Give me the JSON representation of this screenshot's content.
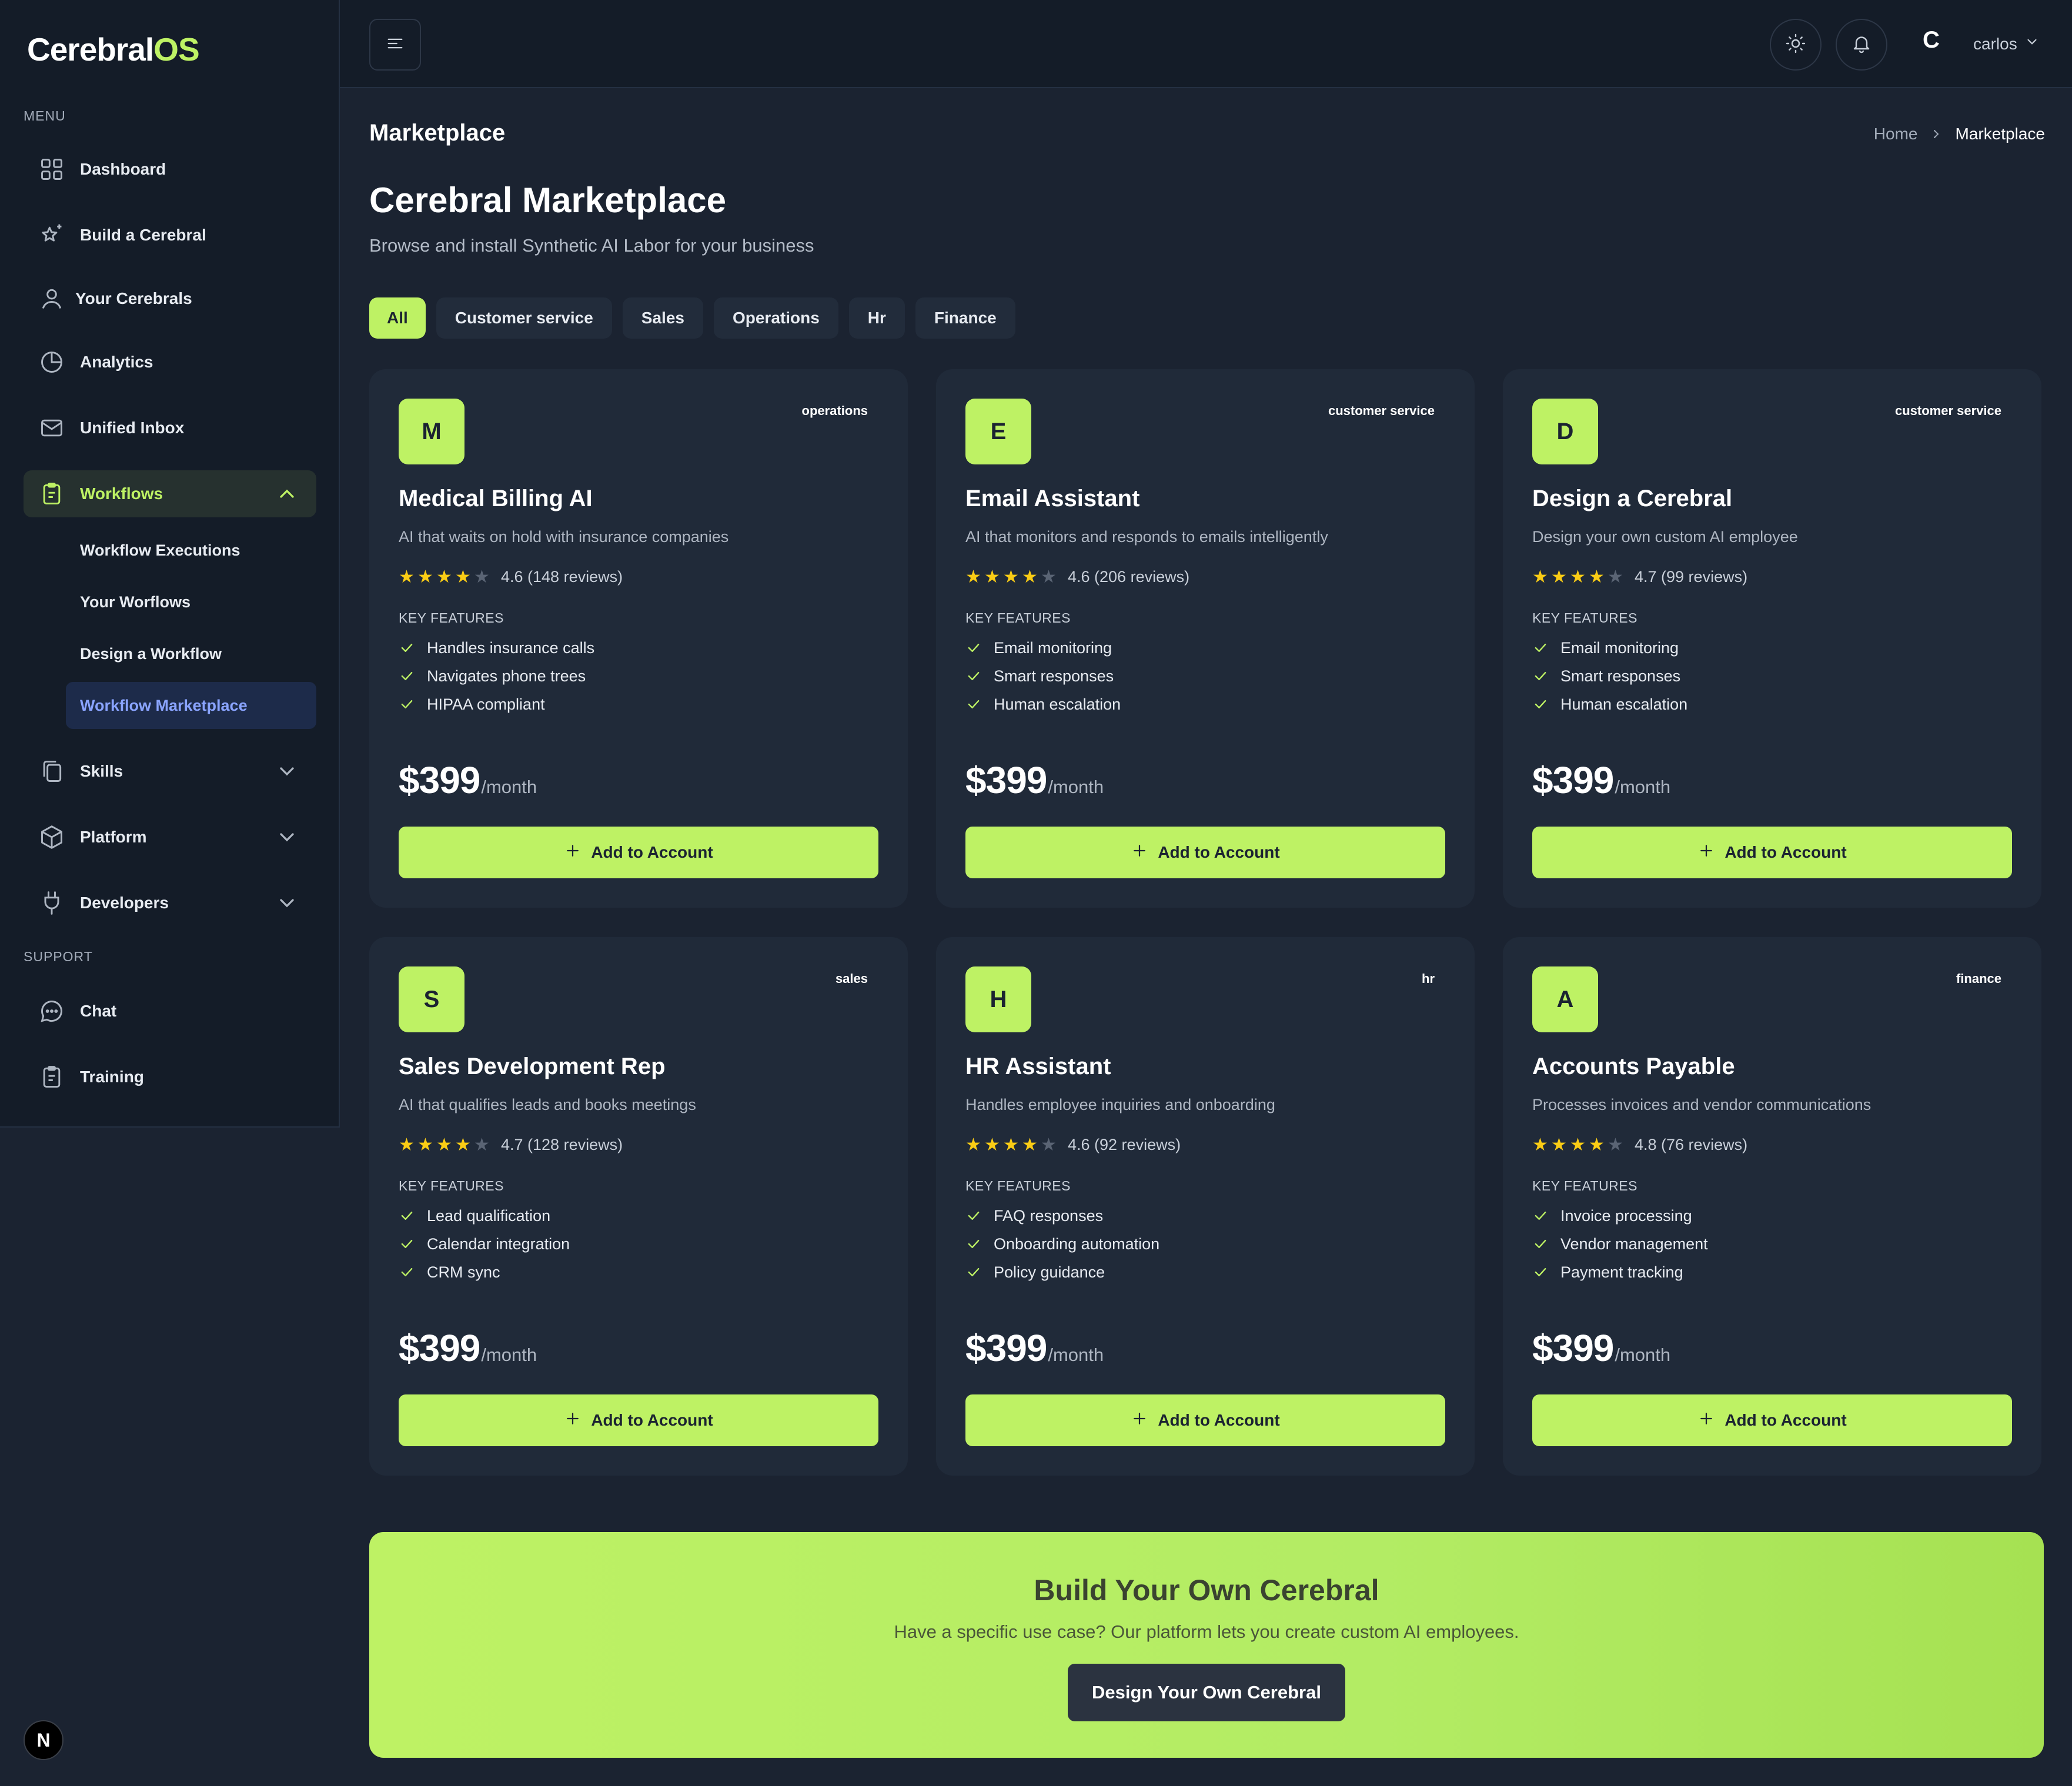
{
  "app": {
    "logo_main": "Cerebral",
    "logo_accent": "OS",
    "accent_color": "#bef264"
  },
  "sidebar": {
    "menu_label": "MENU",
    "support_label": "SUPPORT",
    "items": [
      {
        "label": "Dashboard",
        "icon": "grid-icon"
      },
      {
        "label": "Build a Cerebral",
        "icon": "sparkle-star-icon"
      },
      {
        "label": "Your Cerebrals",
        "icon": "user-icon"
      },
      {
        "label": "Analytics",
        "icon": "pie-chart-icon"
      },
      {
        "label": "Unified Inbox",
        "icon": "mail-icon"
      },
      {
        "label": "Workflows",
        "icon": "clipboard-icon",
        "expanded": true
      },
      {
        "label": "Skills",
        "icon": "copy-icon"
      },
      {
        "label": "Platform",
        "icon": "cube-icon"
      },
      {
        "label": "Developers",
        "icon": "plug-icon"
      }
    ],
    "workflow_subitems": [
      {
        "label": "Workflow Executions"
      },
      {
        "label": "Your Worflows"
      },
      {
        "label": "Design a Workflow"
      },
      {
        "label": "Workflow Marketplace",
        "active": true
      }
    ],
    "support_items": [
      {
        "label": "Chat",
        "icon": "chat-bubble-icon"
      },
      {
        "label": "Training",
        "icon": "clipboard-icon"
      }
    ],
    "bottom_badge": "N"
  },
  "header": {
    "avatar_initial": "C",
    "user_name": "carlos"
  },
  "page": {
    "label": "Marketplace",
    "breadcrumb": [
      "Home",
      "Marketplace"
    ],
    "title": "Cerebral Marketplace",
    "subtitle": "Browse and install Synthetic AI Labor for your business",
    "tabs": [
      "All",
      "Customer service",
      "Sales",
      "Operations",
      "Hr",
      "Finance"
    ],
    "active_tab": "All"
  },
  "cards": [
    {
      "letter": "M",
      "category": "operations",
      "name": "Medical Billing AI",
      "description": "AI that waits on hold with insurance companies",
      "stars_filled": 4,
      "rating_text": "4.6 (148 reviews)",
      "features_label": "KEY FEATURES",
      "features": [
        "Handles insurance calls",
        "Navigates phone trees",
        "HIPAA compliant"
      ],
      "price": "$399",
      "period": "/month",
      "button": "Add to Account"
    },
    {
      "letter": "E",
      "category": "customer service",
      "name": "Email Assistant",
      "description": "AI that monitors and responds to emails intelligently",
      "stars_filled": 4,
      "rating_text": "4.6 (206 reviews)",
      "features_label": "KEY FEATURES",
      "features": [
        "Email monitoring",
        "Smart responses",
        "Human escalation"
      ],
      "price": "$399",
      "period": "/month",
      "button": "Add to Account"
    },
    {
      "letter": "D",
      "category": "customer service",
      "name": "Design a Cerebral",
      "description": "Design your own custom AI employee",
      "stars_filled": 4,
      "rating_text": "4.7 (99 reviews)",
      "features_label": "KEY FEATURES",
      "features": [
        "Email monitoring",
        "Smart responses",
        "Human escalation"
      ],
      "price": "$399",
      "period": "/month",
      "button": "Add to Account"
    },
    {
      "letter": "S",
      "category": "sales",
      "name": "Sales Development Rep",
      "description": "AI that qualifies leads and books meetings",
      "stars_filled": 4,
      "rating_text": "4.7 (128 reviews)",
      "features_label": "KEY FEATURES",
      "features": [
        "Lead qualification",
        "Calendar integration",
        "CRM sync"
      ],
      "price": "$399",
      "period": "/month",
      "button": "Add to Account"
    },
    {
      "letter": "H",
      "category": "hr",
      "name": "HR Assistant",
      "description": "Handles employee inquiries and onboarding",
      "stars_filled": 4,
      "rating_text": "4.6 (92 reviews)",
      "features_label": "KEY FEATURES",
      "features": [
        "FAQ responses",
        "Onboarding automation",
        "Policy guidance"
      ],
      "price": "$399",
      "period": "/month",
      "button": "Add to Account"
    },
    {
      "letter": "A",
      "category": "finance",
      "name": "Accounts Payable",
      "description": "Processes invoices and vendor communications",
      "stars_filled": 4,
      "rating_text": "4.8 (76 reviews)",
      "features_label": "KEY FEATURES",
      "features": [
        "Invoice processing",
        "Vendor management",
        "Payment tracking"
      ],
      "price": "$399",
      "period": "/month",
      "button": "Add to Account"
    }
  ],
  "cta": {
    "title": "Build Your Own Cerebral",
    "subtitle": "Have a specific use case? Our platform lets you create custom AI employees.",
    "button": "Design Your Own Cerebral"
  }
}
